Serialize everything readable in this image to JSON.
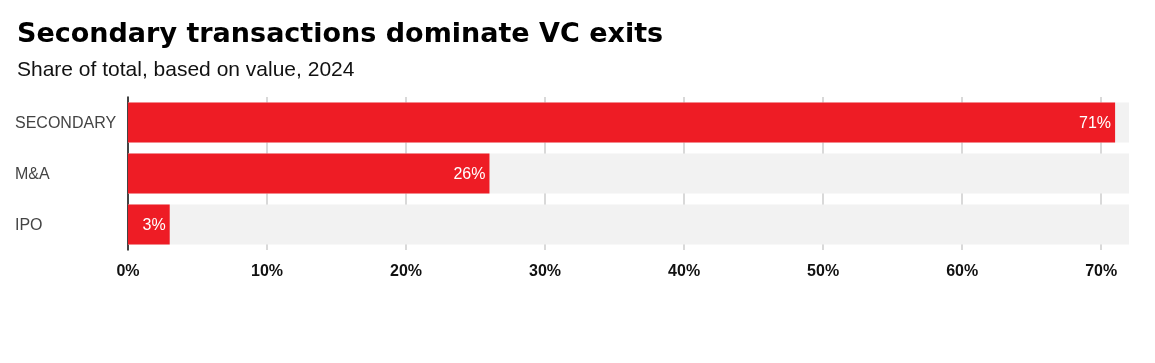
{
  "chart_data": {
    "type": "bar",
    "orientation": "horizontal",
    "title": "Secondary transactions dominate VC exits",
    "subtitle": "Share of total, based on value, 2024",
    "categories": [
      "SECONDARY",
      "M&A",
      "IPO"
    ],
    "values": [
      71,
      26,
      3
    ],
    "color": "#ee1c25",
    "value_labels": [
      "71%",
      "26%",
      "3%"
    ],
    "xlim": [
      0,
      72
    ],
    "xticks": [
      {
        "value": 0,
        "label": "0%"
      },
      {
        "value": 10,
        "label": "10%"
      },
      {
        "value": 20,
        "label": "20%"
      },
      {
        "value": 30,
        "label": "30%"
      },
      {
        "value": 40,
        "label": "40%"
      },
      {
        "value": 50,
        "label": "50%"
      },
      {
        "value": 60,
        "label": "60%"
      },
      {
        "value": 70,
        "label": "70%"
      }
    ],
    "grid": "x"
  }
}
